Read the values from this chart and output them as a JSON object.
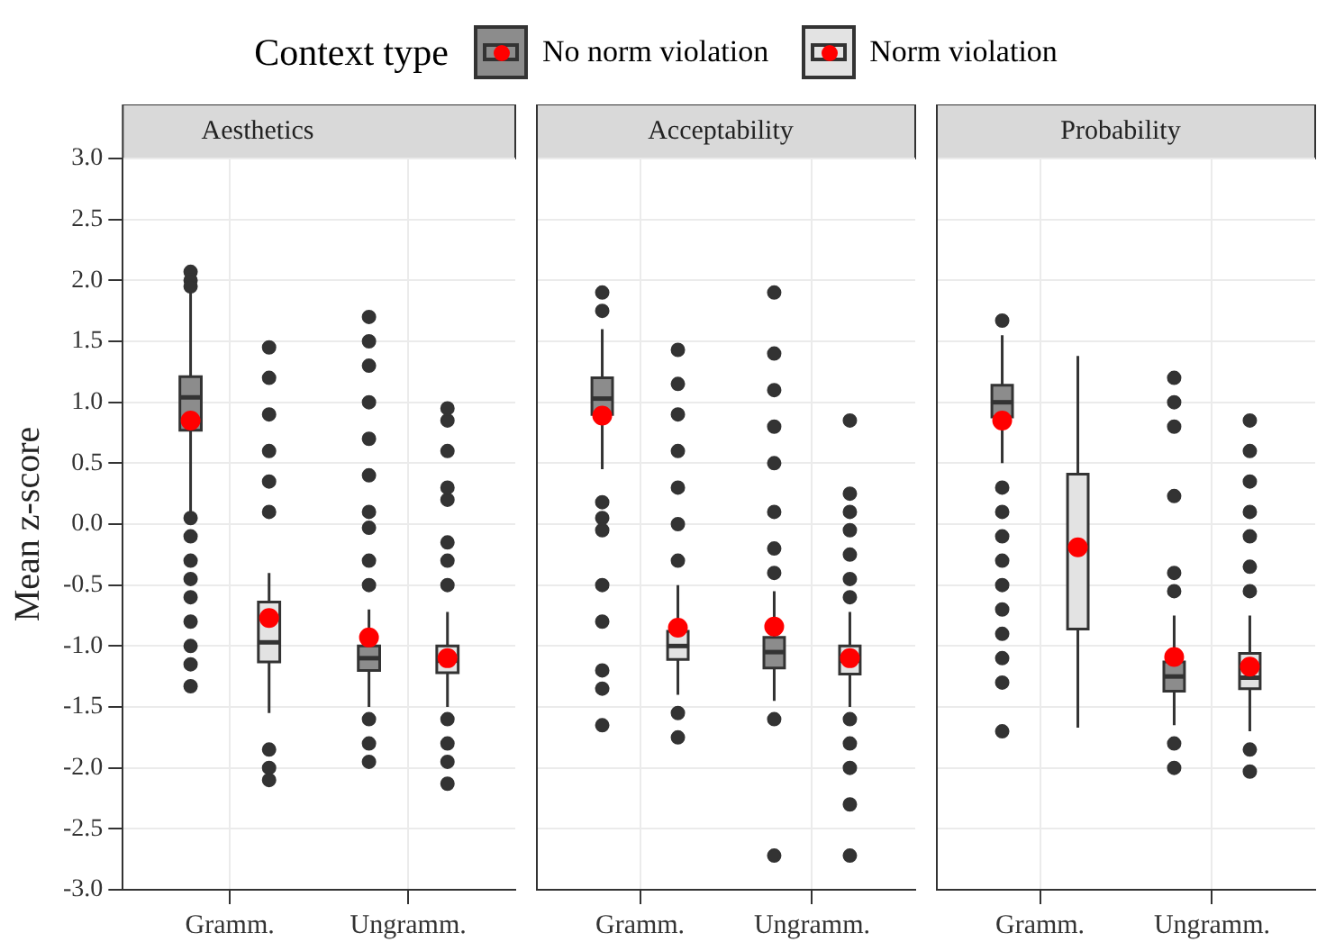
{
  "chart_data": [
    {
      "type": "box",
      "title": "Aesthetics",
      "ylabel": "Mean z-score",
      "legend_title": "Context type",
      "legend": "top",
      "grid": true,
      "categories": [
        "Gramm.",
        "Ungramm."
      ],
      "ylim": [
        -3,
        3
      ],
      "yticks": [
        {
          "value": -3,
          "label": "-3.0"
        },
        {
          "value": -2.5,
          "label": "-2.5"
        },
        {
          "value": -2,
          "label": "-2.0"
        },
        {
          "value": -1.5,
          "label": "-1.5"
        },
        {
          "value": -1,
          "label": "-1.0"
        },
        {
          "value": -0.5,
          "label": "-0.5"
        },
        {
          "value": 0,
          "label": "0.0"
        },
        {
          "value": 0.5,
          "label": "0.5"
        },
        {
          "value": 1,
          "label": "1.0"
        },
        {
          "value": 1.5,
          "label": "1.5"
        },
        {
          "value": 2,
          "label": "2.0"
        },
        {
          "value": 2.5,
          "label": "2.5"
        },
        {
          "value": 3,
          "label": "3.0"
        }
      ],
      "series": [
        {
          "name": "No norm violation",
          "color": "#8c8c8c",
          "boxes": [
            {
              "low": 0.1,
              "q1": 0.77,
              "median": 1.04,
              "q3": 1.21,
              "high": 1.9,
              "mean": 0.85,
              "outliers": [
                2.07,
                2.0,
                1.95,
                0.05,
                -0.1,
                -0.3,
                -0.45,
                -0.6,
                -0.8,
                -1.0,
                -1.15,
                -1.33
              ]
            },
            {
              "low": -1.5,
              "q1": -1.2,
              "median": -1.1,
              "q3": -1.0,
              "high": -0.7,
              "mean": -0.93,
              "outliers": [
                1.7,
                1.5,
                1.3,
                1.0,
                0.7,
                0.4,
                0.1,
                -0.03,
                -0.3,
                -0.5,
                -1.6,
                -1.8,
                -1.95
              ]
            }
          ]
        },
        {
          "name": "Norm violation",
          "color": "#e3e3e3",
          "boxes": [
            {
              "low": -1.55,
              "q1": -1.13,
              "median": -0.97,
              "q3": -0.64,
              "high": -0.4,
              "mean": -0.77,
              "outliers": [
                1.45,
                1.2,
                0.9,
                0.6,
                0.35,
                0.1,
                -1.85,
                -2.0,
                -2.1
              ]
            },
            {
              "low": -1.5,
              "q1": -1.22,
              "median": -1.12,
              "q3": -1.0,
              "high": -0.72,
              "mean": -1.1,
              "outliers": [
                0.95,
                0.85,
                0.6,
                0.3,
                0.2,
                -0.15,
                -0.3,
                -0.5,
                -1.6,
                -1.8,
                -1.95,
                -2.13
              ]
            }
          ]
        }
      ]
    },
    {
      "type": "box",
      "title": "Acceptability",
      "grid": true,
      "tick_labels": "x",
      "categories": [
        "Gramm.",
        "Ungramm."
      ],
      "ylim": [
        -3,
        3
      ],
      "yticks": [
        -3,
        -2.5,
        -2,
        -1.5,
        -1,
        -0.5,
        0,
        0.5,
        1,
        1.5,
        2,
        2.5,
        3
      ],
      "series": [
        {
          "color": "#8c8c8c",
          "boxes": [
            {
              "low": 0.45,
              "q1": 0.9,
              "median": 1.03,
              "q3": 1.2,
              "high": 1.6,
              "mean": 0.89,
              "outliers": [
                1.9,
                1.75,
                0.18,
                0.05,
                -0.05,
                -0.5,
                -0.8,
                -1.2,
                -1.35,
                -1.65
              ]
            },
            {
              "low": -1.45,
              "q1": -1.18,
              "median": -1.05,
              "q3": -0.93,
              "high": -0.55,
              "mean": -0.84,
              "outliers": [
                1.9,
                1.4,
                1.1,
                0.8,
                0.5,
                0.1,
                -0.2,
                -0.4,
                -1.6,
                -2.72
              ]
            }
          ]
        },
        {
          "color": "#e3e3e3",
          "boxes": [
            {
              "low": -1.4,
              "q1": -1.11,
              "median": -1.0,
              "q3": -0.88,
              "high": -0.5,
              "mean": -0.85,
              "outliers": [
                1.43,
                1.15,
                0.9,
                0.6,
                0.3,
                0.0,
                -0.3,
                -1.55,
                -1.75
              ]
            },
            {
              "low": -1.5,
              "q1": -1.23,
              "median": -1.12,
              "q3": -1.0,
              "high": -0.72,
              "mean": -1.1,
              "outliers": [
                0.85,
                0.25,
                0.1,
                -0.05,
                -0.25,
                -0.45,
                -0.6,
                -1.6,
                -1.8,
                -2.0,
                -2.3,
                -2.72
              ]
            }
          ]
        }
      ]
    },
    {
      "type": "box",
      "title": "Probability",
      "grid": true,
      "tick_labels": "x",
      "categories": [
        "Gramm.",
        "Ungramm."
      ],
      "ylim": [
        -3,
        3
      ],
      "yticks": [
        -3,
        -2.5,
        -2,
        -1.5,
        -1,
        -0.5,
        0,
        0.5,
        1,
        1.5,
        2,
        2.5,
        3
      ],
      "series": [
        {
          "color": "#8c8c8c",
          "boxes": [
            {
              "low": 0.5,
              "q1": 0.88,
              "median": 1.0,
              "q3": 1.14,
              "high": 1.55,
              "mean": 0.85,
              "outliers": [
                1.67,
                0.3,
                0.1,
                -0.1,
                -0.3,
                -0.5,
                -0.7,
                -0.9,
                -1.1,
                -1.3,
                -1.7
              ]
            },
            {
              "low": -1.65,
              "q1": -1.37,
              "median": -1.25,
              "q3": -1.13,
              "high": -0.75,
              "mean": -1.09,
              "outliers": [
                1.2,
                1.0,
                0.8,
                0.23,
                -0.4,
                -0.55,
                -1.8,
                -2.0
              ]
            }
          ]
        },
        {
          "color": "#e3e3e3",
          "boxes": [
            {
              "low": -1.67,
              "q1": -0.86,
              "median": -0.2,
              "q3": 0.41,
              "high": 1.38,
              "mean": -0.19
            },
            {
              "low": -1.7,
              "q1": -1.35,
              "median": -1.26,
              "q3": -1.06,
              "high": -0.75,
              "mean": -1.17,
              "outliers": [
                0.85,
                0.6,
                0.35,
                0.1,
                -0.1,
                -0.35,
                -0.55,
                -1.85,
                -2.03
              ]
            }
          ]
        }
      ]
    }
  ]
}
